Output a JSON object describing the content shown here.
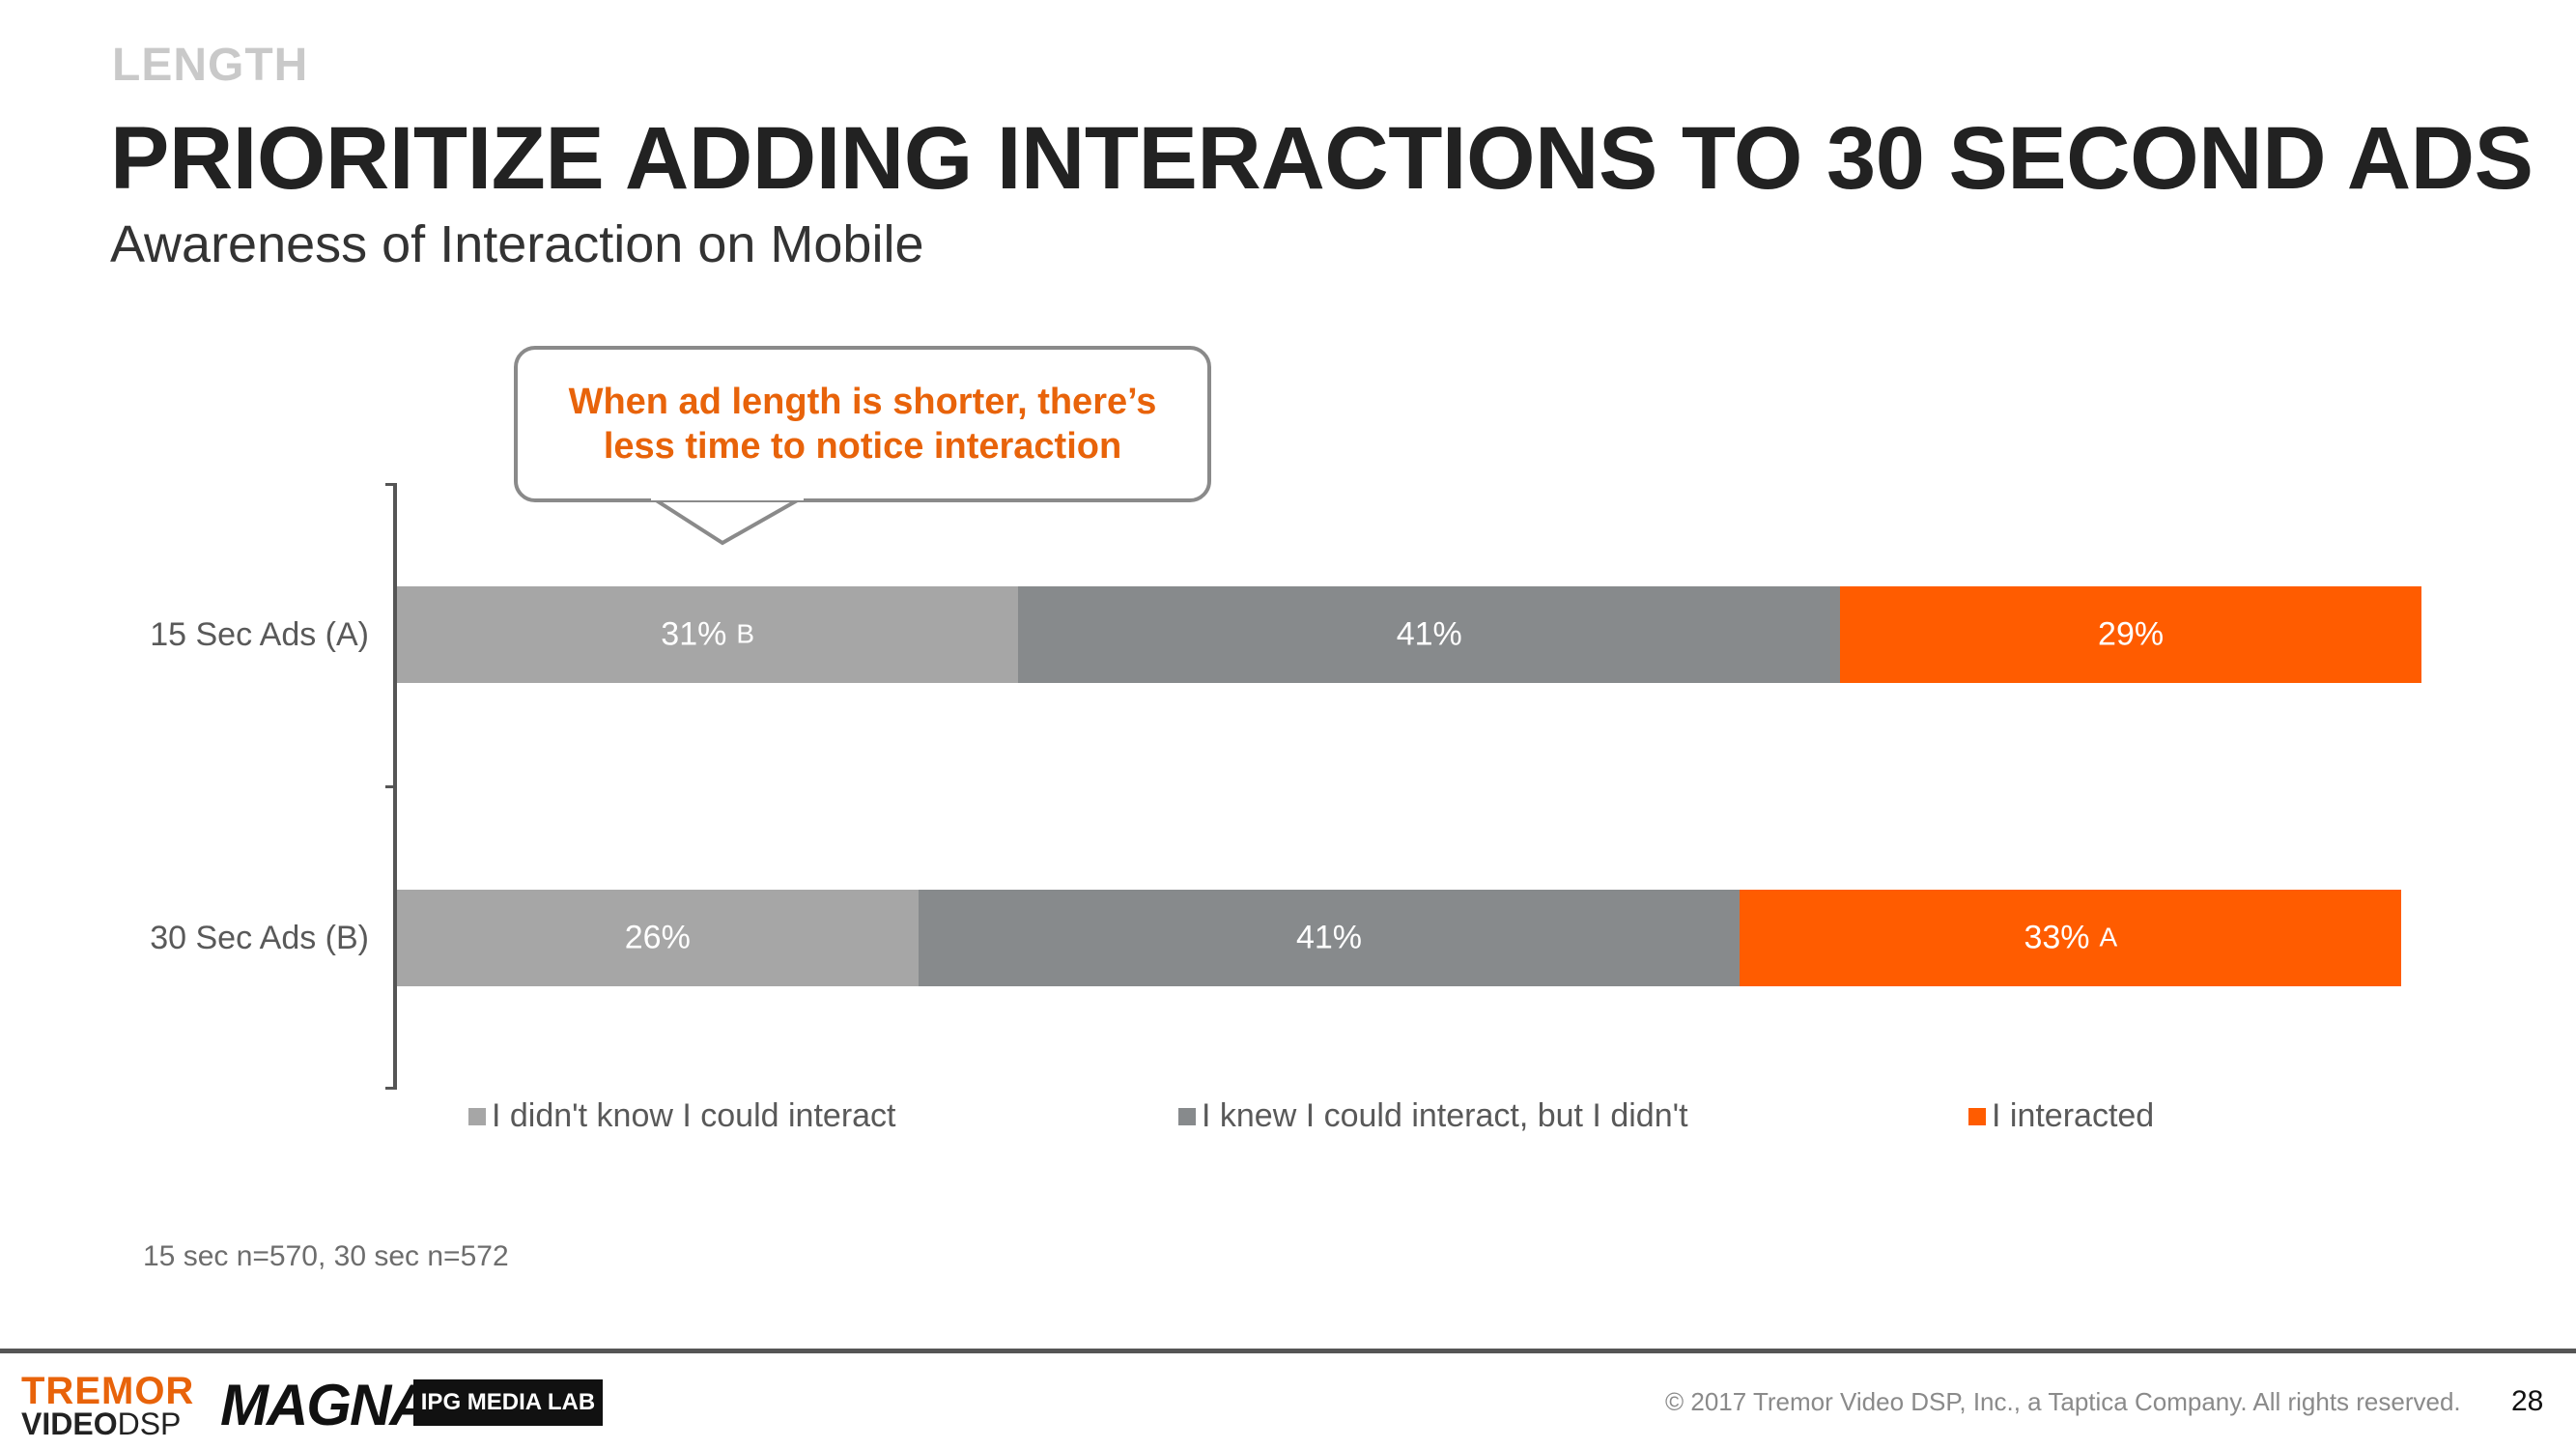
{
  "header": {
    "section": "LENGTH",
    "title": "PRIORITIZE ADDING INTERACTIONS TO 30 SECOND ADS",
    "subtitle": "Awareness of Interaction on Mobile"
  },
  "callout": {
    "text": "When ad length is shorter, there’s less time to notice interaction"
  },
  "chart_data": {
    "type": "bar",
    "orientation": "horizontal",
    "stacked": true,
    "title": "Awareness of Interaction on Mobile",
    "xlabel": "",
    "ylabel": "",
    "xlim": [
      0,
      101
    ],
    "grid": false,
    "legend_position": "bottom",
    "categories": [
      "15 Sec Ads (A)",
      "30 Sec Ads (B)"
    ],
    "series": [
      {
        "name": "I didn't know I could interact",
        "color": "#a6a6a6",
        "values": [
          31,
          26
        ],
        "labels": [
          "31%",
          "26%"
        ],
        "significance": [
          "B",
          ""
        ]
      },
      {
        "name": "I knew I could interact, but I didn't",
        "color": "#878a8c",
        "values": [
          41,
          41
        ],
        "labels": [
          "41%",
          "41%"
        ],
        "significance": [
          "",
          ""
        ]
      },
      {
        "name": "I interacted",
        "color": "#ff5c00",
        "values": [
          29,
          33
        ],
        "labels": [
          "29%",
          "33%"
        ],
        "significance": [
          "",
          "A"
        ]
      }
    ]
  },
  "footnote": "15 sec n=570, 30 sec n=572",
  "footer": {
    "tremor_top": "TREMOR",
    "tremor_video": "VIDEO",
    "tremor_dsp": "DSP",
    "magna": "MAGNA",
    "ipg": "IPG MEDIA LAB",
    "copyright": "© 2017 Tremor Video DSP, Inc., a Taptica Company. All rights reserved.",
    "page": "28"
  }
}
